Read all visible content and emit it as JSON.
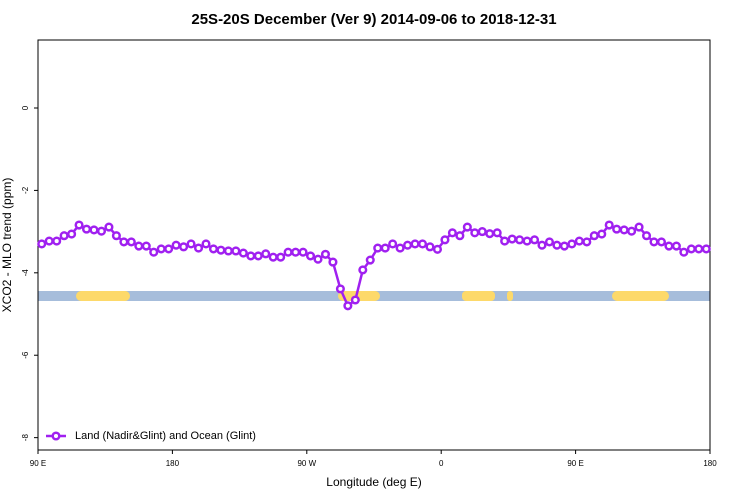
{
  "chart_data": {
    "type": "line",
    "title": "25S-20S December (Ver 9)   2014-09-06 to 2018-12-31",
    "x_label": "Longitude (deg E)",
    "y_label": "XCO2 - MLO trend (ppm)",
    "xlim": [
      90,
      540
    ],
    "ylim": [
      -8.3,
      1.65
    ],
    "xticks": [
      {
        "value": 90,
        "label": "90 E"
      },
      180,
      {
        "value": 270,
        "label": "90 W"
      },
      {
        "value": 360,
        "label": "0"
      },
      {
        "value": 450,
        "label": "90 E"
      },
      {
        "value": 540,
        "label": "180"
      }
    ],
    "yticks": [
      0,
      -2,
      -4,
      -6,
      -8
    ],
    "legend": "bottom-left",
    "series": [
      {
        "name": "Land (Nadir&Glint) and Ocean (Glint)",
        "color": "#a020f0",
        "x": [
          92.5,
          97.5,
          102.5,
          107.5,
          112.5,
          117.5,
          122.5,
          127.5,
          132.5,
          137.5,
          142.5,
          147.5,
          152.5,
          157.5,
          162.5,
          167.5,
          172.5,
          177.5,
          182.5,
          187.5,
          192.5,
          197.5,
          202.5,
          207.5,
          212.5,
          217.5,
          222.5,
          227.5,
          232.5,
          237.5,
          242.5,
          247.5,
          252.5,
          257.5,
          262.5,
          267.5,
          272.5,
          277.5,
          282.5,
          287.5,
          292.5,
          297.5,
          302.5,
          307.5,
          312.5,
          317.5,
          322.5,
          327.5,
          332.5,
          337.5,
          342.5,
          347.5,
          352.5,
          357.5,
          362.5,
          367.5,
          372.5,
          377.5,
          382.5,
          387.5,
          392.5,
          397.5,
          402.5,
          407.5,
          412.5,
          417.5,
          422.5,
          427.5,
          432.5,
          437.5,
          442.5,
          447.5,
          452.5,
          457.5,
          462.5,
          467.5,
          472.5,
          477.5,
          482.5,
          487.5,
          492.5,
          497.5,
          502.5,
          507.5,
          512.5,
          517.5,
          522.5,
          527.5,
          532.5,
          537.5
        ],
        "values": [
          -3.3,
          -3.23,
          -3.23,
          -3.1,
          -3.06,
          -2.84,
          -2.94,
          -2.96,
          -2.99,
          -2.89,
          -3.1,
          -3.25,
          -3.25,
          -3.35,
          -3.35,
          -3.5,
          -3.42,
          -3.42,
          -3.33,
          -3.37,
          -3.3,
          -3.4,
          -3.3,
          -3.42,
          -3.45,
          -3.47,
          -3.47,
          -3.52,
          -3.59,
          -3.59,
          -3.54,
          -3.62,
          -3.62,
          -3.5,
          -3.5,
          -3.5,
          -3.59,
          -3.67,
          -3.55,
          -3.74,
          -4.39,
          -4.8,
          -4.66,
          -3.93,
          -3.69,
          -3.4,
          -3.4,
          -3.3,
          -3.4,
          -3.33,
          -3.3,
          -3.3,
          -3.37,
          -3.43,
          -3.2,
          -3.03,
          -3.1,
          -2.89,
          -3.03,
          -3.0,
          -3.05,
          -3.03,
          -3.23,
          -3.18,
          -3.2,
          -3.23,
          -3.2,
          -3.33,
          -3.25,
          -3.33,
          -3.35,
          -3.3,
          -3.23,
          -3.25,
          -3.1,
          -3.06,
          -2.84,
          -2.94,
          -2.96,
          -2.99,
          -2.89,
          -3.1,
          -3.25,
          -3.25,
          -3.35,
          -3.35,
          -3.5,
          -3.42,
          -3.42,
          -3.42
        ]
      }
    ]
  }
}
